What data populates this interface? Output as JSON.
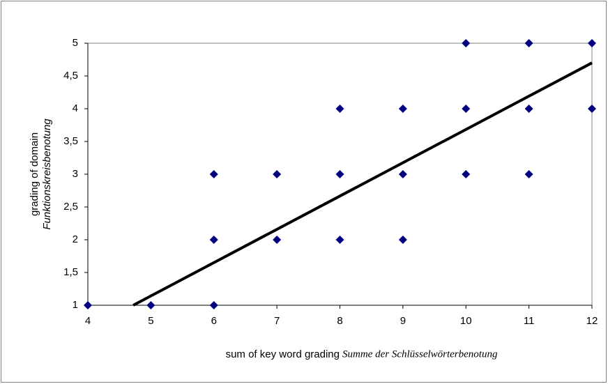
{
  "chart_data": {
    "type": "scatter",
    "x_label": "sum of key word grading",
    "x_label_italic": "Summe der Schlüsselwörterbenotung",
    "y_label": "grading of domain",
    "y_label_italic": "Funktionskreisbenotung",
    "x": [
      4,
      5,
      6,
      6,
      6,
      7,
      7,
      8,
      8,
      8,
      9,
      9,
      9,
      10,
      10,
      10,
      11,
      11,
      11,
      12,
      12
    ],
    "values": [
      1,
      1,
      1,
      2,
      3,
      2,
      3,
      2,
      3,
      4,
      2,
      3,
      4,
      3,
      4,
      5,
      3,
      4,
      5,
      4,
      5
    ],
    "color": "#000080",
    "trendline": {
      "x": [
        4.72,
        12
      ],
      "y": [
        1,
        4.7
      ],
      "color": "#000000"
    },
    "xlim": [
      4,
      12
    ],
    "xticks": [
      4,
      5,
      6,
      7,
      8,
      9,
      10,
      11,
      12
    ],
    "ylim": [
      1,
      5
    ],
    "yticks": [
      1,
      {
        "value": 1.5,
        "label": "1,5"
      },
      2,
      {
        "value": 2.5,
        "label": "2,5"
      },
      3,
      {
        "value": 3.5,
        "label": "3,5"
      },
      4,
      {
        "value": 4.5,
        "label": "4,5"
      },
      5
    ],
    "grid": false
  }
}
